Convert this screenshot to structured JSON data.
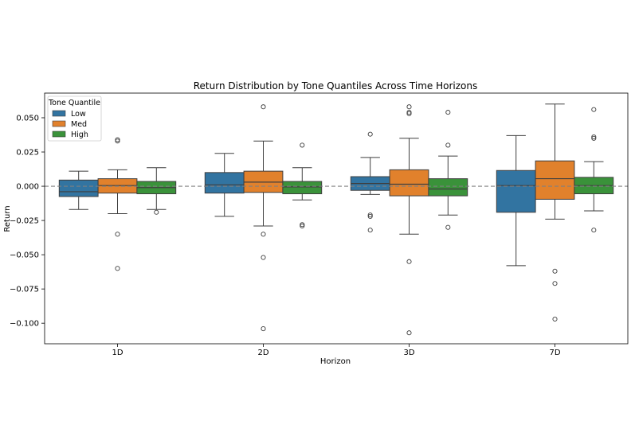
{
  "chart_data": {
    "type": "boxplot",
    "title": "Return Distribution by Tone Quantiles Across Time Horizons",
    "xlabel": "Horizon",
    "ylabel": "Return",
    "categories": [
      "1D",
      "2D",
      "3D",
      "7D"
    ],
    "ylim": [
      -0.115,
      0.068
    ],
    "yticks": [
      -0.1,
      -0.075,
      -0.05,
      -0.025,
      0.0,
      0.025,
      0.05
    ],
    "ytick_labels": [
      "−0.100",
      "−0.075",
      "−0.050",
      "−0.025",
      "0.000",
      "0.025",
      "0.050"
    ],
    "reference_line": 0.0,
    "legend": {
      "title": "Tone Quantile",
      "position": "top-left"
    },
    "series": [
      {
        "name": "Low",
        "color": "#3274a1",
        "boxes": [
          {
            "q1": -0.0075,
            "median": -0.004,
            "q3": 0.0045,
            "whisker_low": -0.017,
            "whisker_high": 0.011,
            "outliers": []
          },
          {
            "q1": -0.005,
            "median": 0.001,
            "q3": 0.01,
            "whisker_low": -0.022,
            "whisker_high": 0.024,
            "outliers": []
          },
          {
            "q1": -0.003,
            "median": 0.002,
            "q3": 0.007,
            "whisker_low": -0.006,
            "whisker_high": 0.021,
            "outliers": [
              0.038,
              -0.021,
              -0.022,
              -0.032
            ]
          },
          {
            "q1": -0.019,
            "median": 0.0005,
            "q3": 0.0115,
            "whisker_low": -0.058,
            "whisker_high": 0.037,
            "outliers": []
          }
        ]
      },
      {
        "name": "Med",
        "color": "#e1812c",
        "boxes": [
          {
            "q1": -0.005,
            "median": 0.0005,
            "q3": 0.0055,
            "whisker_low": -0.02,
            "whisker_high": 0.012,
            "outliers": [
              0.034,
              0.033,
              -0.035,
              -0.06
            ]
          },
          {
            "q1": -0.0045,
            "median": 0.003,
            "q3": 0.011,
            "whisker_low": -0.029,
            "whisker_high": 0.033,
            "outliers": [
              0.058,
              -0.035,
              -0.052,
              -0.104
            ]
          },
          {
            "q1": -0.007,
            "median": 0.0015,
            "q3": 0.012,
            "whisker_low": -0.035,
            "whisker_high": 0.035,
            "outliers": [
              0.058,
              0.054,
              0.053,
              -0.055,
              -0.107
            ]
          },
          {
            "q1": -0.0095,
            "median": 0.0055,
            "q3": 0.0185,
            "whisker_low": -0.024,
            "whisker_high": 0.06,
            "outliers": [
              -0.062,
              -0.071,
              -0.097
            ]
          }
        ]
      },
      {
        "name": "High",
        "color": "#3a923a",
        "boxes": [
          {
            "q1": -0.0055,
            "median": -0.001,
            "q3": 0.0035,
            "whisker_low": -0.017,
            "whisker_high": 0.0135,
            "outliers": [
              -0.019
            ]
          },
          {
            "q1": -0.0055,
            "median": -0.0005,
            "q3": 0.0035,
            "whisker_low": -0.01,
            "whisker_high": 0.0135,
            "outliers": [
              0.03,
              -0.028,
              -0.029
            ]
          },
          {
            "q1": -0.007,
            "median": -0.002,
            "q3": 0.0055,
            "whisker_low": -0.021,
            "whisker_high": 0.022,
            "outliers": [
              0.054,
              0.03,
              -0.03
            ]
          },
          {
            "q1": -0.0055,
            "median": 0.0005,
            "q3": 0.0065,
            "whisker_low": -0.018,
            "whisker_high": 0.018,
            "outliers": [
              0.056,
              0.036,
              0.035,
              -0.032
            ]
          }
        ]
      }
    ]
  }
}
